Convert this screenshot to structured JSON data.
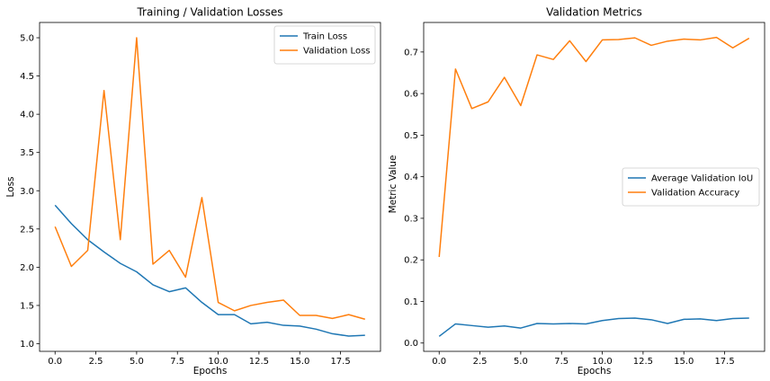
{
  "chart_data": [
    {
      "type": "line",
      "title": "Training / Validation Losses",
      "xlabel": "Epochs",
      "ylabel": "Loss",
      "xlim": [
        -0.95,
        19.95
      ],
      "ylim": [
        0.9,
        5.2
      ],
      "xticks": [
        0,
        2.5,
        5,
        7.5,
        10,
        12.5,
        15,
        17.5
      ],
      "xtick_labels": [
        "0.0",
        "2.5",
        "5.0",
        "7.5",
        "10.0",
        "12.5",
        "15.0",
        "17.5"
      ],
      "yticks": [
        1.0,
        1.5,
        2.0,
        2.5,
        3.0,
        3.5,
        4.0,
        4.5,
        5.0
      ],
      "ytick_labels": [
        "1.0",
        "1.5",
        "2.0",
        "2.5",
        "3.0",
        "3.5",
        "4.0",
        "4.5",
        "5.0"
      ],
      "grid": false,
      "legend_position": "top-right",
      "x": [
        0,
        1,
        2,
        3,
        4,
        5,
        6,
        7,
        8,
        9,
        10,
        11,
        12,
        13,
        14,
        15,
        16,
        17,
        18,
        19
      ],
      "series": [
        {
          "name": "Train Loss",
          "color": "#1f77b4",
          "values": [
            2.81,
            2.57,
            2.36,
            2.2,
            2.05,
            1.94,
            1.77,
            1.68,
            1.73,
            1.54,
            1.38,
            1.38,
            1.26,
            1.28,
            1.24,
            1.23,
            1.19,
            1.13,
            1.1,
            1.11
          ]
        },
        {
          "name": "Validation Loss",
          "color": "#ff7f0e",
          "values": [
            2.53,
            2.01,
            2.22,
            4.31,
            2.36,
            5.0,
            2.04,
            2.22,
            1.87,
            2.91,
            1.54,
            1.43,
            1.5,
            1.54,
            1.57,
            1.37,
            1.37,
            1.33,
            1.38,
            1.32
          ]
        }
      ]
    },
    {
      "type": "line",
      "title": "Validation Metrics",
      "xlabel": "Epochs",
      "ylabel": "Metric Value",
      "xlim": [
        -0.95,
        19.95
      ],
      "ylim": [
        -0.02,
        0.771
      ],
      "xticks": [
        0,
        2.5,
        5,
        7.5,
        10,
        12.5,
        15,
        17.5
      ],
      "xtick_labels": [
        "0.0",
        "2.5",
        "5.0",
        "7.5",
        "10.0",
        "12.5",
        "15.0",
        "17.5"
      ],
      "yticks": [
        0.0,
        0.1,
        0.2,
        0.3,
        0.4,
        0.5,
        0.6,
        0.7
      ],
      "ytick_labels": [
        "0.0",
        "0.1",
        "0.2",
        "0.3",
        "0.4",
        "0.5",
        "0.6",
        "0.7"
      ],
      "grid": false,
      "legend_position": "center-right",
      "x": [
        0,
        1,
        2,
        3,
        4,
        5,
        6,
        7,
        8,
        9,
        10,
        11,
        12,
        13,
        14,
        15,
        16,
        17,
        18,
        19
      ],
      "series": [
        {
          "name": "Average Validation IoU",
          "color": "#1f77b4",
          "values": [
            0.016,
            0.046,
            0.042,
            0.038,
            0.041,
            0.036,
            0.047,
            0.046,
            0.047,
            0.046,
            0.054,
            0.059,
            0.06,
            0.056,
            0.047,
            0.057,
            0.058,
            0.054,
            0.059,
            0.06
          ]
        },
        {
          "name": "Validation Accuracy",
          "color": "#ff7f0e",
          "values": [
            0.207,
            0.659,
            0.564,
            0.58,
            0.639,
            0.571,
            0.693,
            0.682,
            0.727,
            0.677,
            0.729,
            0.73,
            0.734,
            0.716,
            0.726,
            0.731,
            0.729,
            0.735,
            0.71,
            0.733
          ]
        }
      ]
    }
  ]
}
